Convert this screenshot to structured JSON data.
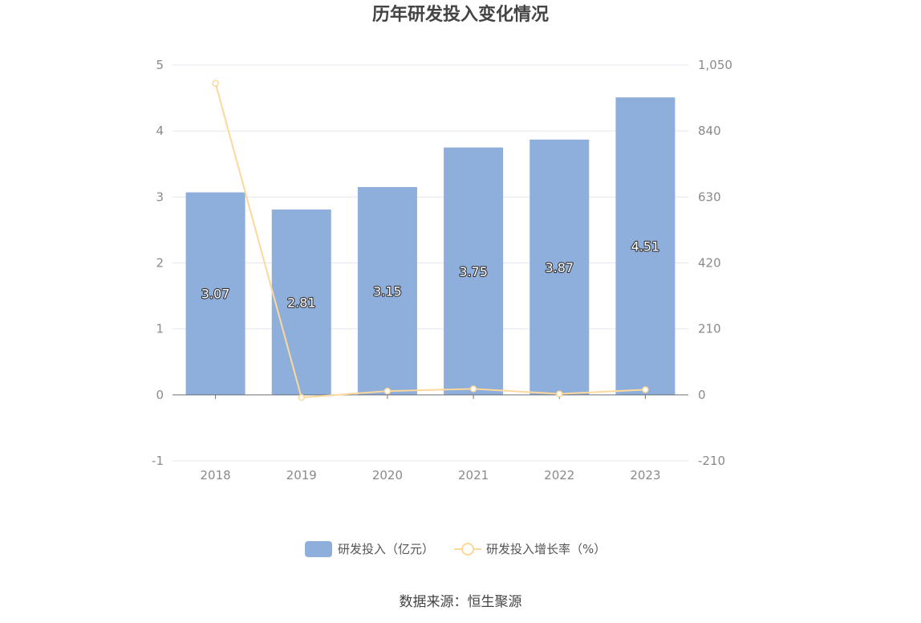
{
  "chart_data": {
    "type": "bar",
    "title": "历年研发投入变化情况",
    "categories": [
      "2018",
      "2019",
      "2020",
      "2021",
      "2022",
      "2023"
    ],
    "series": [
      {
        "name": "研发投入（亿元）",
        "type": "bar",
        "axis": "left",
        "color": "#8eaedb",
        "values": [
          3.07,
          2.81,
          3.15,
          3.75,
          3.87,
          4.51
        ],
        "labels": [
          "3.07",
          "2.81",
          "3.15",
          "3.75",
          "3.87",
          "4.51"
        ]
      },
      {
        "name": "研发投入增长率（%）",
        "type": "line",
        "axis": "right",
        "color": "#fcd89a",
        "values": [
          992,
          -8.5,
          12.1,
          19.0,
          3.2,
          16.5
        ]
      }
    ],
    "y_left": {
      "min": -1,
      "max": 5,
      "ticks": [
        "-1",
        "0",
        "1",
        "2",
        "3",
        "4",
        "5"
      ]
    },
    "y_right": {
      "min": -210,
      "max": 1050,
      "ticks": [
        "-210",
        "0",
        "210",
        "420",
        "630",
        "840",
        "1,050"
      ]
    },
    "grid": true,
    "legend_position": "bottom"
  },
  "source": "数据来源：恒生聚源"
}
